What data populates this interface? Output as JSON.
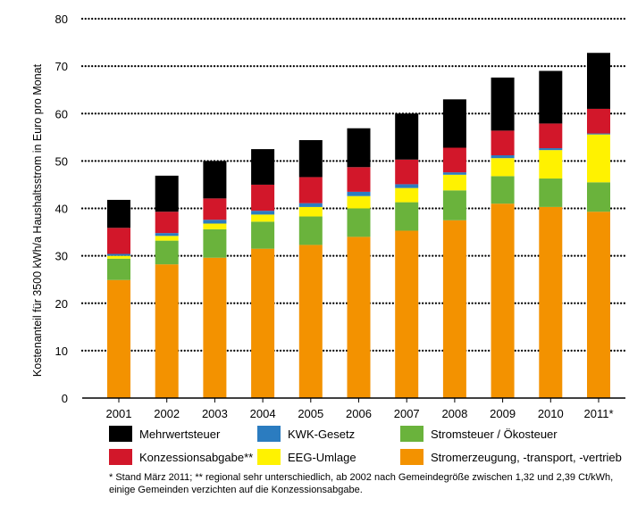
{
  "chart_data": {
    "type": "bar",
    "stacked": true,
    "categories": [
      "2001",
      "2002",
      "2003",
      "2004",
      "2005",
      "2006",
      "2007",
      "2008",
      "2009",
      "2010",
      "2011*"
    ],
    "ylabel": "Kostenanteil für 3500 kWh/a Haushaltsstrom in Euro pro Monat",
    "xlabel": "",
    "ylim": [
      0,
      80
    ],
    "yticks": [
      0,
      10,
      20,
      30,
      40,
      50,
      60,
      70,
      80
    ],
    "grid": "dotted horizontal",
    "series": [
      {
        "name": "Stromerzeugung, -transport, -vertrieb",
        "color": "#F39200",
        "values": [
          24.9,
          28.2,
          29.6,
          31.5,
          32.3,
          34.0,
          35.3,
          37.5,
          41.0,
          40.3,
          39.3
        ]
      },
      {
        "name": "Stromsteuer / Ökosteuer",
        "color": "#6AB33C",
        "values": [
          4.5,
          5.0,
          6.0,
          5.7,
          6.0,
          6.0,
          6.0,
          6.3,
          5.8,
          6.0,
          6.2
        ]
      },
      {
        "name": "EEG-Umlage",
        "color": "#FFF200",
        "values": [
          0.6,
          1.0,
          1.2,
          1.5,
          2.0,
          2.6,
          3.0,
          3.3,
          3.8,
          6.0,
          10.1
        ]
      },
      {
        "name": "KWK-Gesetz",
        "color": "#2B7CC0",
        "values": [
          0.4,
          0.6,
          0.8,
          0.8,
          0.8,
          0.9,
          0.8,
          0.5,
          0.6,
          0.4,
          0.2
        ]
      },
      {
        "name": "Konzessionsabgabe**",
        "color": "#D2172A",
        "values": [
          5.5,
          4.5,
          4.5,
          5.5,
          5.5,
          5.2,
          5.2,
          5.2,
          5.2,
          5.2,
          5.2
        ]
      },
      {
        "name": "Mehrwertsteuer",
        "color": "#000000",
        "values": [
          5.9,
          7.6,
          7.9,
          7.5,
          7.8,
          8.2,
          9.7,
          10.2,
          11.2,
          11.1,
          11.8
        ]
      }
    ],
    "legend_placement": "bottom"
  },
  "legend": [
    {
      "label": "Mehrwertsteuer",
      "color": "#000000"
    },
    {
      "label": "KWK-Gesetz",
      "color": "#2B7CC0"
    },
    {
      "label": "Stromsteuer / Ökosteuer",
      "color": "#6AB33C"
    },
    {
      "label": "Konzessionsabgabe**",
      "color": "#D2172A"
    },
    {
      "label": "EEG-Umlage",
      "color": "#FFF200"
    },
    {
      "label": "Stromerzeugung, -transport, -vertrieb",
      "color": "#F39200"
    }
  ],
  "footnote": {
    "line1": "* Stand März 2011; ** regional sehr unterschiedlich, ab 2002 nach Gemeindegröße zwischen 1,32 und 2,39 Ct/kWh,",
    "line2": "einige Gemeinden verzichten auf die Konzessionsabgabe."
  }
}
